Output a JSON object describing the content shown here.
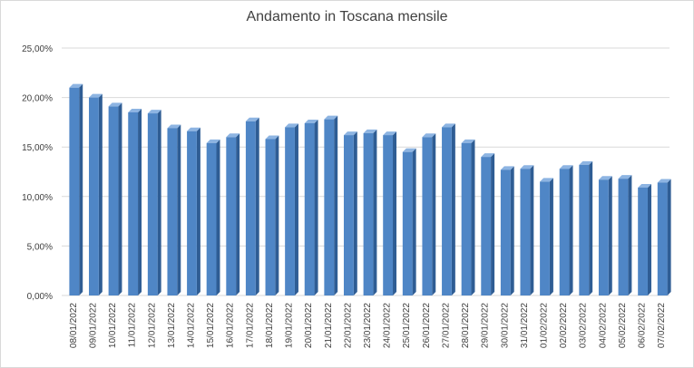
{
  "chart_data": {
    "type": "bar",
    "title": "Andamento in Toscana mensile",
    "xlabel": "",
    "ylabel": "",
    "ylim": [
      0,
      25
    ],
    "yticks": [
      "0,00%",
      "5,00%",
      "10,00%",
      "15,00%",
      "20,00%",
      "25,00%"
    ],
    "ytick_values": [
      0,
      5,
      10,
      15,
      20,
      25
    ],
    "grid": true,
    "bar_style": "3d",
    "colors": {
      "bar": "#4f86c6",
      "bar_side": "#2f5d94",
      "bar_top": "#8db4e2",
      "grid": "#d9d9d9",
      "text": "#404040"
    },
    "categories": [
      "08/01/2022",
      "09/01/2022",
      "10/01/2022",
      "11/01/2022",
      "12/01/2022",
      "13/01/2022",
      "14/01/2022",
      "15/01/2022",
      "16/01/2022",
      "17/01/2022",
      "18/01/2022",
      "19/01/2022",
      "20/01/2022",
      "21/01/2022",
      "22/01/2022",
      "23/01/2022",
      "24/01/2022",
      "25/01/2022",
      "26/01/2022",
      "27/01/2022",
      "28/01/2022",
      "29/01/2022",
      "30/01/2022",
      "31/01/2022",
      "01/02/2022",
      "02/02/2022",
      "03/02/2022",
      "04/02/2022",
      "05/02/2022",
      "06/02/2022",
      "07/02/2022"
    ],
    "values": [
      21.0,
      20.0,
      19.1,
      18.5,
      18.4,
      16.9,
      16.6,
      15.4,
      16.0,
      17.6,
      15.8,
      17.0,
      17.4,
      17.8,
      16.2,
      16.4,
      16.2,
      14.5,
      16.0,
      17.0,
      15.4,
      14.0,
      12.7,
      12.8,
      11.5,
      12.8,
      13.2,
      11.7,
      11.8,
      10.9,
      11.4
    ]
  }
}
